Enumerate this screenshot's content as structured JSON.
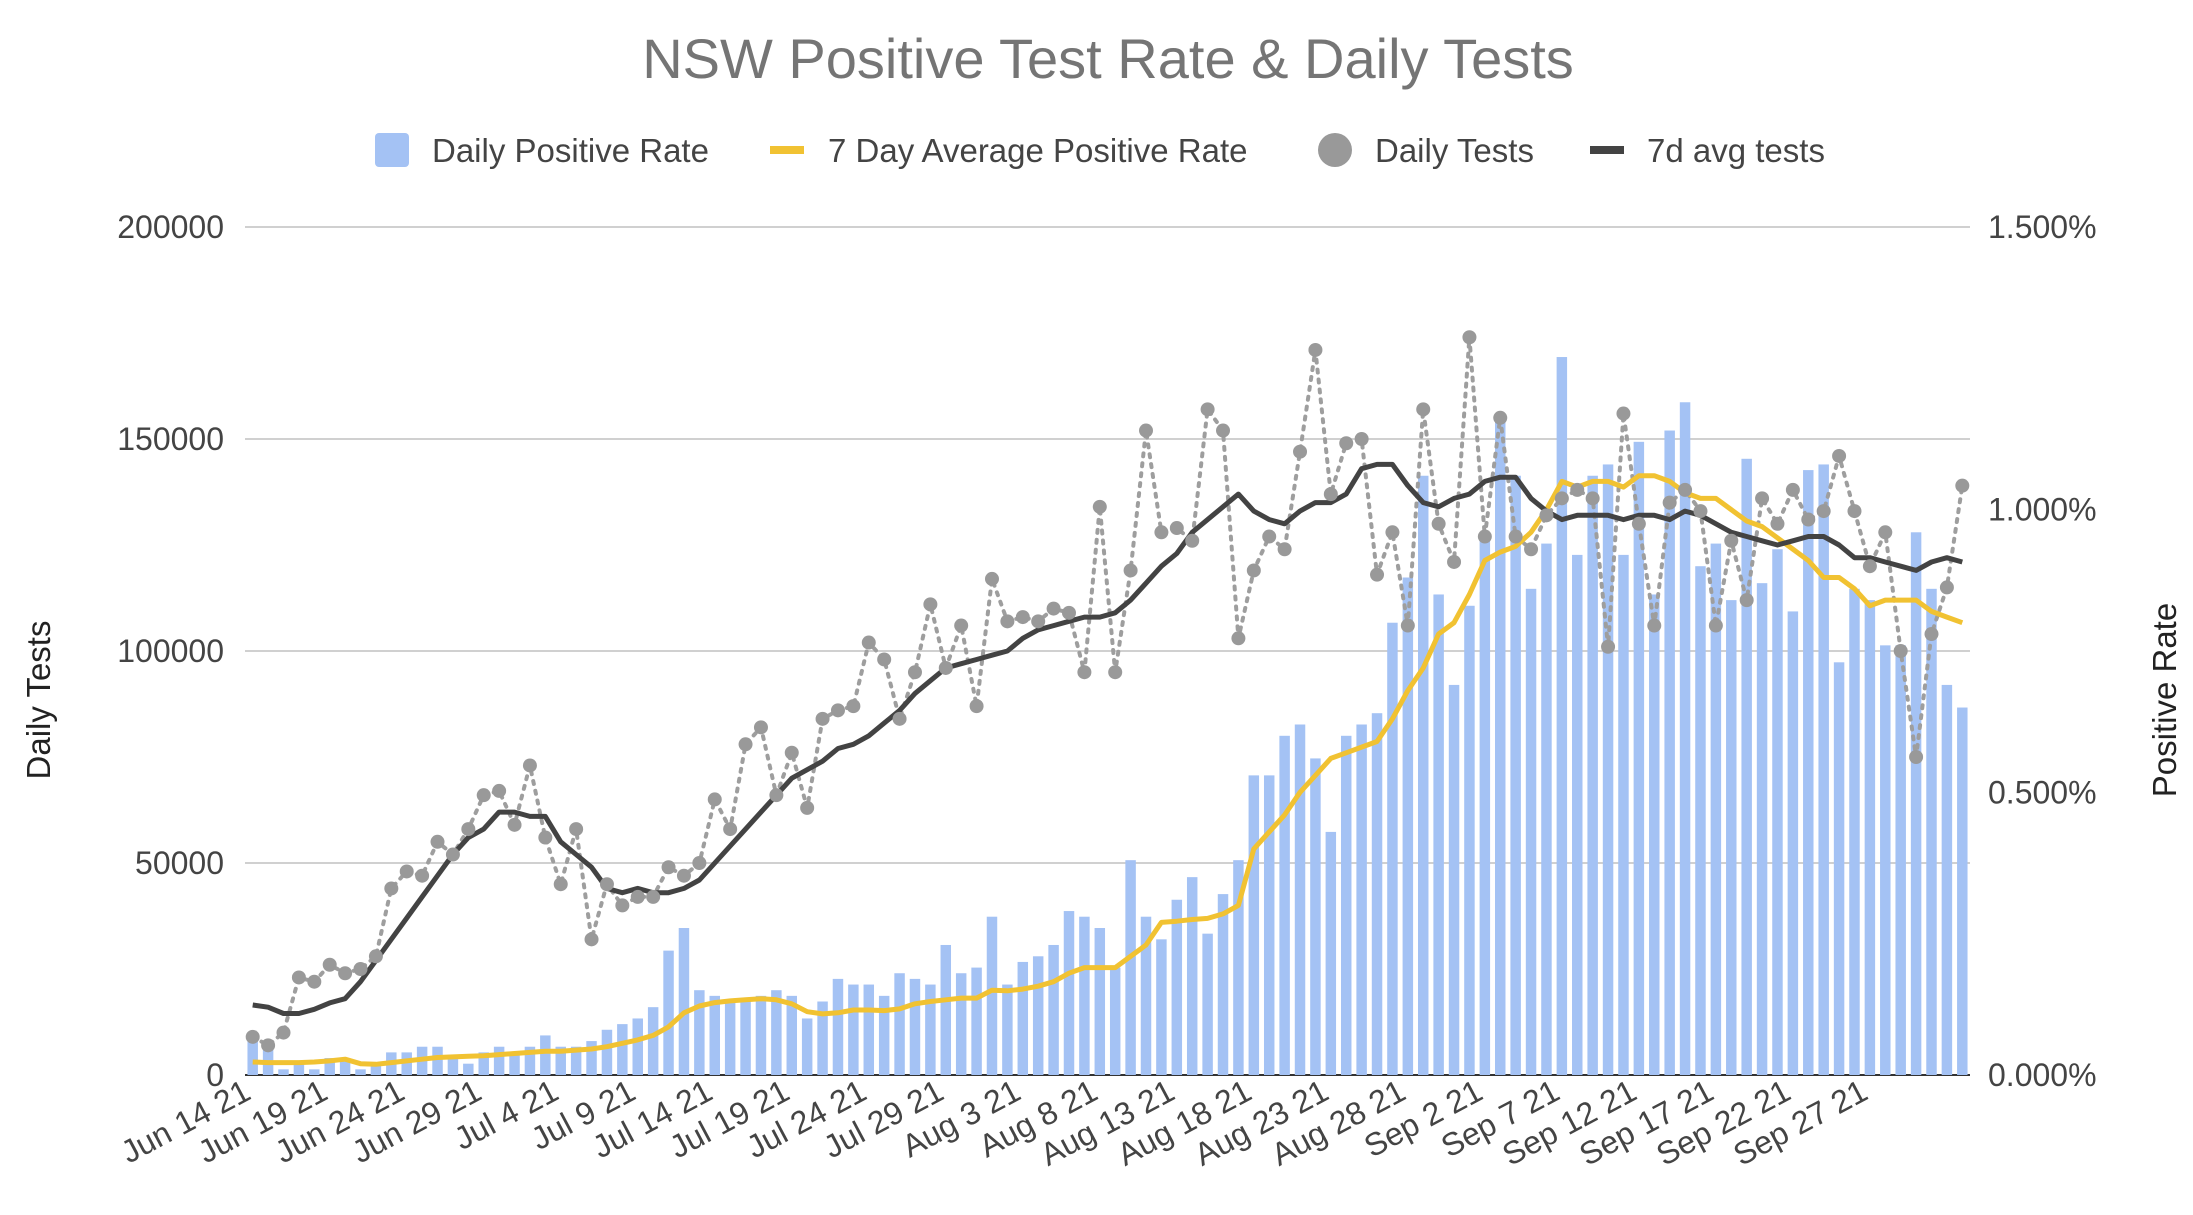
{
  "chart_data": {
    "type": "bar+line",
    "title": "NSW Positive Test Rate & Daily Tests",
    "ylabel": "Daily Tests",
    "y2label": "Positive Rate",
    "ylim": [
      0,
      200000
    ],
    "y2lim": [
      0,
      0.015
    ],
    "y_ticks": [
      "0",
      "50000",
      "100000",
      "150000",
      "200000"
    ],
    "y2_ticks": [
      "0.000%",
      "0.500%",
      "1.000%",
      "1.500%"
    ],
    "x_ticks": [
      "Jun 14 21",
      "Jun 19 21",
      "Jun 24 21",
      "Jun 29 21",
      "Jul 4 21",
      "Jul 9 21",
      "Jul 14 21",
      "Jul 19 21",
      "Jul 24 21",
      "Jul 29 21",
      "Aug 3 21",
      "Aug 8 21",
      "Aug 13 21",
      "Aug 18 21",
      "Aug 23 21",
      "Aug 28 21",
      "Sep 2 21",
      "Sep 7 21",
      "Sep 12 21",
      "Sep 17 21",
      "Sep 22 21",
      "Sep 27 21"
    ],
    "grid": true,
    "legend_position": "top",
    "series": [
      {
        "name": "Daily Positive Rate",
        "kind": "bar",
        "axis": "right",
        "color": "#a4c2f4",
        "values": [
          0.0007,
          0.0005,
          0.0001,
          0.0002,
          0.0001,
          0.0003,
          0.0003,
          0.0001,
          0.0002,
          0.0004,
          0.0004,
          0.0005,
          0.0005,
          0.0003,
          0.0002,
          0.0004,
          0.0005,
          0.0004,
          0.0005,
          0.0007,
          0.0005,
          0.0005,
          0.0006,
          0.0008,
          0.0009,
          0.001,
          0.0012,
          0.0022,
          0.0026,
          0.0015,
          0.0014,
          0.0013,
          0.0013,
          0.0014,
          0.0015,
          0.0014,
          0.001,
          0.0013,
          0.0017,
          0.0016,
          0.0016,
          0.0014,
          0.0018,
          0.0017,
          0.0016,
          0.0023,
          0.0018,
          0.0019,
          0.0028,
          0.0016,
          0.002,
          0.0021,
          0.0023,
          0.0029,
          0.0028,
          0.0026,
          0.0019,
          0.0038,
          0.0028,
          0.0024,
          0.0031,
          0.0035,
          0.0025,
          0.0032,
          0.0038,
          0.0053,
          0.0053,
          0.006,
          0.0062,
          0.0056,
          0.0043,
          0.006,
          0.0062,
          0.0064,
          0.008,
          0.0088,
          0.0106,
          0.0085,
          0.0069,
          0.0083,
          0.0095,
          0.0116,
          0.0106,
          0.0086,
          0.0094,
          0.0127,
          0.0092,
          0.0106,
          0.0108,
          0.0092,
          0.0112,
          0.0085,
          0.0114,
          0.0119,
          0.009,
          0.0094,
          0.0084,
          0.0109,
          0.0087,
          0.0093,
          0.0082,
          0.0107,
          0.0108,
          0.0073,
          0.0086,
          0.0084,
          0.0076,
          0.0076,
          0.0096,
          0.0086,
          0.0069,
          0.0065
        ]
      },
      {
        "name": "7 Day Average Positive Rate",
        "kind": "line",
        "axis": "right",
        "color": "#f1c232",
        "values": [
          0.00023,
          0.00022,
          0.00022,
          0.00022,
          0.00023,
          0.00025,
          0.00028,
          0.0002,
          0.00019,
          0.00022,
          0.00025,
          0.00028,
          0.00031,
          0.00032,
          0.00033,
          0.00034,
          0.00036,
          0.00038,
          0.0004,
          0.00042,
          0.00042,
          0.00044,
          0.00046,
          0.0005,
          0.00056,
          0.00062,
          0.0007,
          0.00085,
          0.0011,
          0.00122,
          0.00128,
          0.00131,
          0.00133,
          0.00135,
          0.00133,
          0.00126,
          0.00112,
          0.00108,
          0.0011,
          0.00115,
          0.00115,
          0.00114,
          0.00117,
          0.00126,
          0.0013,
          0.00133,
          0.00136,
          0.00136,
          0.0015,
          0.00149,
          0.00152,
          0.00157,
          0.00165,
          0.0018,
          0.0019,
          0.0019,
          0.0019,
          0.0021,
          0.0023,
          0.0027,
          0.00272,
          0.00275,
          0.00277,
          0.00285,
          0.003,
          0.004,
          0.0043,
          0.0046,
          0.005,
          0.0053,
          0.0056,
          0.0057,
          0.0058,
          0.0059,
          0.0063,
          0.0068,
          0.0072,
          0.0078,
          0.008,
          0.0085,
          0.0091,
          0.00925,
          0.00935,
          0.0096,
          0.01,
          0.0105,
          0.0104,
          0.0105,
          0.0105,
          0.0104,
          0.0106,
          0.0106,
          0.0105,
          0.0103,
          0.0102,
          0.0102,
          0.01,
          0.0098,
          0.0097,
          0.0095,
          0.0093,
          0.0091,
          0.0088,
          0.0088,
          0.0086,
          0.0083,
          0.0084,
          0.0084,
          0.0084,
          0.0082,
          0.0081,
          0.008
        ]
      },
      {
        "name": "Daily Tests",
        "kind": "scatter-dotted",
        "axis": "left",
        "color": "#999999",
        "values": [
          9000,
          7000,
          10000,
          23000,
          22000,
          26000,
          24000,
          25000,
          28000,
          44000,
          48000,
          47000,
          55000,
          52000,
          58000,
          66000,
          67000,
          59000,
          73000,
          56000,
          45000,
          58000,
          32000,
          45000,
          40000,
          42000,
          42000,
          49000,
          47000,
          50000,
          65000,
          58000,
          78000,
          82000,
          66000,
          76000,
          63000,
          84000,
          86000,
          87000,
          102000,
          98000,
          84000,
          95000,
          111000,
          96000,
          106000,
          87000,
          117000,
          107000,
          108000,
          107000,
          110000,
          109000,
          95000,
          134000,
          95000,
          119000,
          152000,
          128000,
          129000,
          126000,
          157000,
          152000,
          103000,
          119000,
          127000,
          124000,
          147000,
          171000,
          137000,
          149000,
          150000,
          118000,
          128000,
          106000,
          157000,
          130000,
          121000,
          174000,
          127000,
          155000,
          127000,
          124000,
          132000,
          136000,
          138000,
          136000,
          101000,
          156000,
          130000,
          106000,
          135000,
          138000,
          133000,
          106000,
          126000,
          112000,
          136000,
          130000,
          138000,
          131000,
          133000,
          146000,
          133000,
          120000,
          128000,
          100000,
          75000,
          104000,
          115000,
          139000
        ]
      },
      {
        "name": "7d avg tests",
        "kind": "line",
        "axis": "left",
        "color": "#434343",
        "values": [
          16500,
          16000,
          14500,
          14500,
          15500,
          17000,
          18000,
          22000,
          27000,
          32000,
          37000,
          42000,
          47000,
          52000,
          56000,
          58000,
          62000,
          62000,
          61000,
          61000,
          55000,
          52000,
          49000,
          44000,
          43000,
          44000,
          43000,
          43000,
          44000,
          46000,
          50000,
          54000,
          58000,
          62000,
          66000,
          70000,
          72000,
          74000,
          77000,
          78000,
          80000,
          83000,
          86000,
          90000,
          93000,
          96000,
          97000,
          98000,
          99000,
          100000,
          103000,
          105000,
          106000,
          107000,
          108000,
          108000,
          109000,
          112000,
          116000,
          120000,
          123000,
          128000,
          131000,
          134000,
          137000,
          133000,
          131000,
          130000,
          133000,
          135000,
          135000,
          137000,
          143000,
          144000,
          144000,
          139000,
          135000,
          134000,
          136000,
          137000,
          140000,
          141000,
          141000,
          136000,
          133000,
          131000,
          132000,
          132000,
          132000,
          131000,
          132000,
          132000,
          131000,
          133000,
          132000,
          130000,
          128000,
          127000,
          126000,
          125000,
          126000,
          127000,
          127000,
          125000,
          122000,
          122000,
          121000,
          120000,
          119000,
          121000,
          122000,
          121000
        ]
      }
    ]
  }
}
